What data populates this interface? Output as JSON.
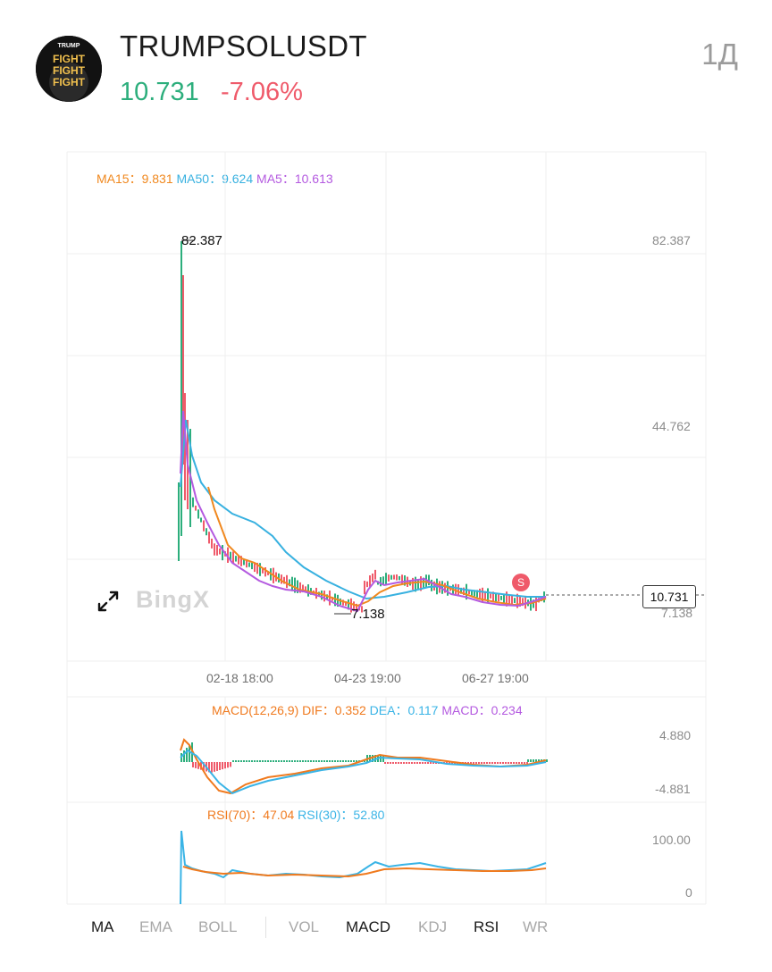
{
  "header": {
    "symbol": "TRUMPSOLUSDT",
    "price": "10.731",
    "change": "-7.06%",
    "period": "1Д",
    "avatar_text": [
      "TRUMP",
      "FIGHT",
      "FIGHT",
      "FIGHT"
    ]
  },
  "ma_legend": {
    "ma15_label": "MA15：",
    "ma15_value": "9.831",
    "ma50_label": "MA50：",
    "ma50_value": "9.624",
    "ma5_label": "MA5：",
    "ma5_value": "10.613"
  },
  "main_chart": {
    "high_label": "82.387",
    "low_label": "7.138",
    "axis_top": "82.387",
    "axis_mid": "44.762",
    "axis_low": "7.138",
    "current_price": "10.731",
    "marker": "S",
    "watermark": "BingX",
    "dates": [
      "02-18 18:00",
      "04-23 19:00",
      "06-27 19:00"
    ]
  },
  "macd": {
    "label": "MACD(12,26,9)",
    "dif_label": "DIF：",
    "dif_value": "0.352",
    "dea_label": "DEA：",
    "dea_value": "0.117",
    "macd_label": "MACD：",
    "macd_value": "0.234",
    "axis_top": "4.880",
    "axis_bottom": "-4.881"
  },
  "rsi": {
    "rsi70_label": "RSI(70)：",
    "rsi70_value": "47.04",
    "rsi30_label": "RSI(30)：",
    "rsi30_value": "52.80",
    "axis_top": "100.00",
    "axis_bottom": "0"
  },
  "indicator_tabs": {
    "ma": "MA",
    "ema": "EMA",
    "boll": "BOLL",
    "vol": "VOL",
    "macd": "MACD",
    "kdj": "KDJ",
    "rsi": "RSI",
    "wr": "WR"
  },
  "colors": {
    "up": "#2cae7c",
    "down": "#ef5a6a",
    "ma15": "#f0881e",
    "ma50": "#38b1e0",
    "ma5": "#b45ae0"
  },
  "chart_data": {
    "type": "line",
    "series": [
      {
        "name": "MA15",
        "values": []
      },
      {
        "name": "MA50",
        "values": []
      },
      {
        "name": "MA5",
        "values": []
      }
    ],
    "ylim": [
      7.138,
      82.387
    ],
    "grid": true
  }
}
